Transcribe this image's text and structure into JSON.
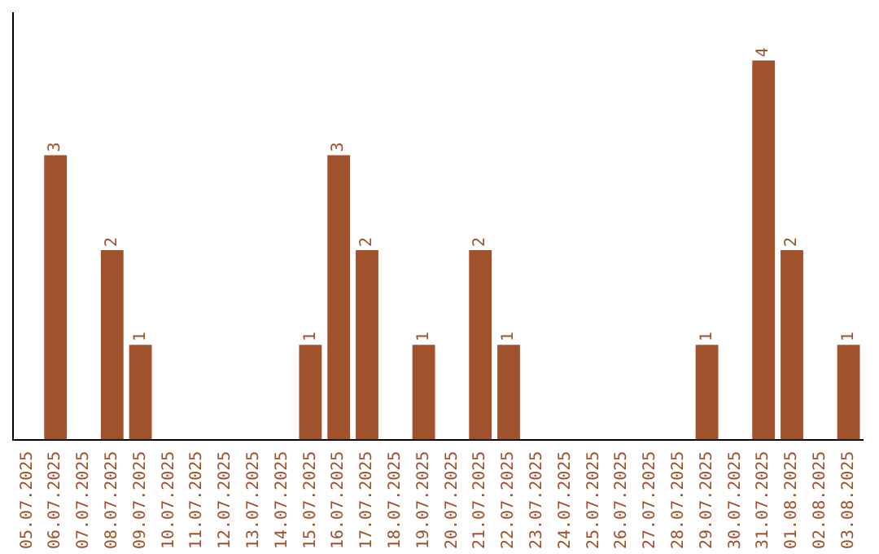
{
  "chart_data": {
    "type": "bar",
    "categories": [
      "05.07.2025",
      "06.07.2025",
      "07.07.2025",
      "08.07.2025",
      "09.07.2025",
      "10.07.2025",
      "11.07.2025",
      "12.07.2025",
      "13.07.2025",
      "14.07.2025",
      "15.07.2025",
      "16.07.2025",
      "17.07.2025",
      "18.07.2025",
      "19.07.2025",
      "20.07.2025",
      "21.07.2025",
      "22.07.2025",
      "23.07.2025",
      "24.07.2025",
      "25.07.2025",
      "26.07.2025",
      "27.07.2025",
      "28.07.2025",
      "29.07.2025",
      "30.07.2025",
      "31.07.2025",
      "01.08.2025",
      "02.08.2025",
      "03.08.2025"
    ],
    "values": [
      0,
      3,
      0,
      2,
      1,
      0,
      0,
      0,
      0,
      0,
      1,
      3,
      2,
      0,
      1,
      0,
      2,
      1,
      0,
      0,
      0,
      0,
      0,
      0,
      1,
      0,
      4,
      2,
      0,
      1
    ],
    "value_labels": [
      null,
      "3",
      null,
      "2",
      "1",
      null,
      null,
      null,
      null,
      null,
      "1",
      "3",
      "2",
      null,
      "1",
      null,
      "2",
      "1",
      null,
      null,
      null,
      null,
      null,
      null,
      "1",
      null,
      "4",
      "2",
      null,
      "1"
    ],
    "color": "#a0522d",
    "grid": false,
    "legend": false
  }
}
